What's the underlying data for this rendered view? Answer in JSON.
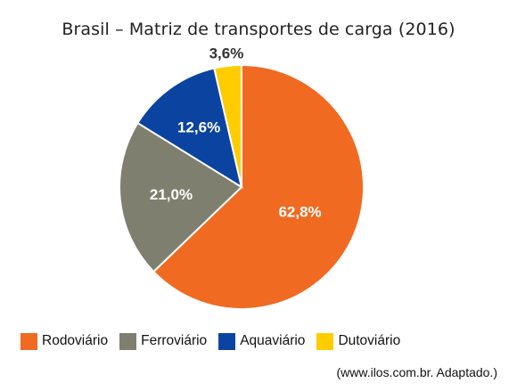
{
  "chart_data": {
    "type": "pie",
    "title": "Brasil – Matriz de transportes de carga (2016)",
    "categories": [
      "Rodoviário",
      "Ferroviário",
      "Aquaviário",
      "Dutoviário"
    ],
    "values": [
      62.8,
      21.0,
      12.6,
      3.6
    ],
    "data_labels": [
      "62,8%",
      "21,0%",
      "12,6%",
      "3,6%"
    ],
    "colors": [
      "#F06A22",
      "#7F7F6F",
      "#0A44A0",
      "#FFCC00"
    ],
    "label_colors": [
      "#ffffff",
      "#ffffff",
      "#ffffff",
      "#333333"
    ],
    "legend_position": "bottom",
    "start": "top",
    "direction": "clockwise"
  },
  "source_note": "(www.ilos.com.br. Adaptado.)"
}
